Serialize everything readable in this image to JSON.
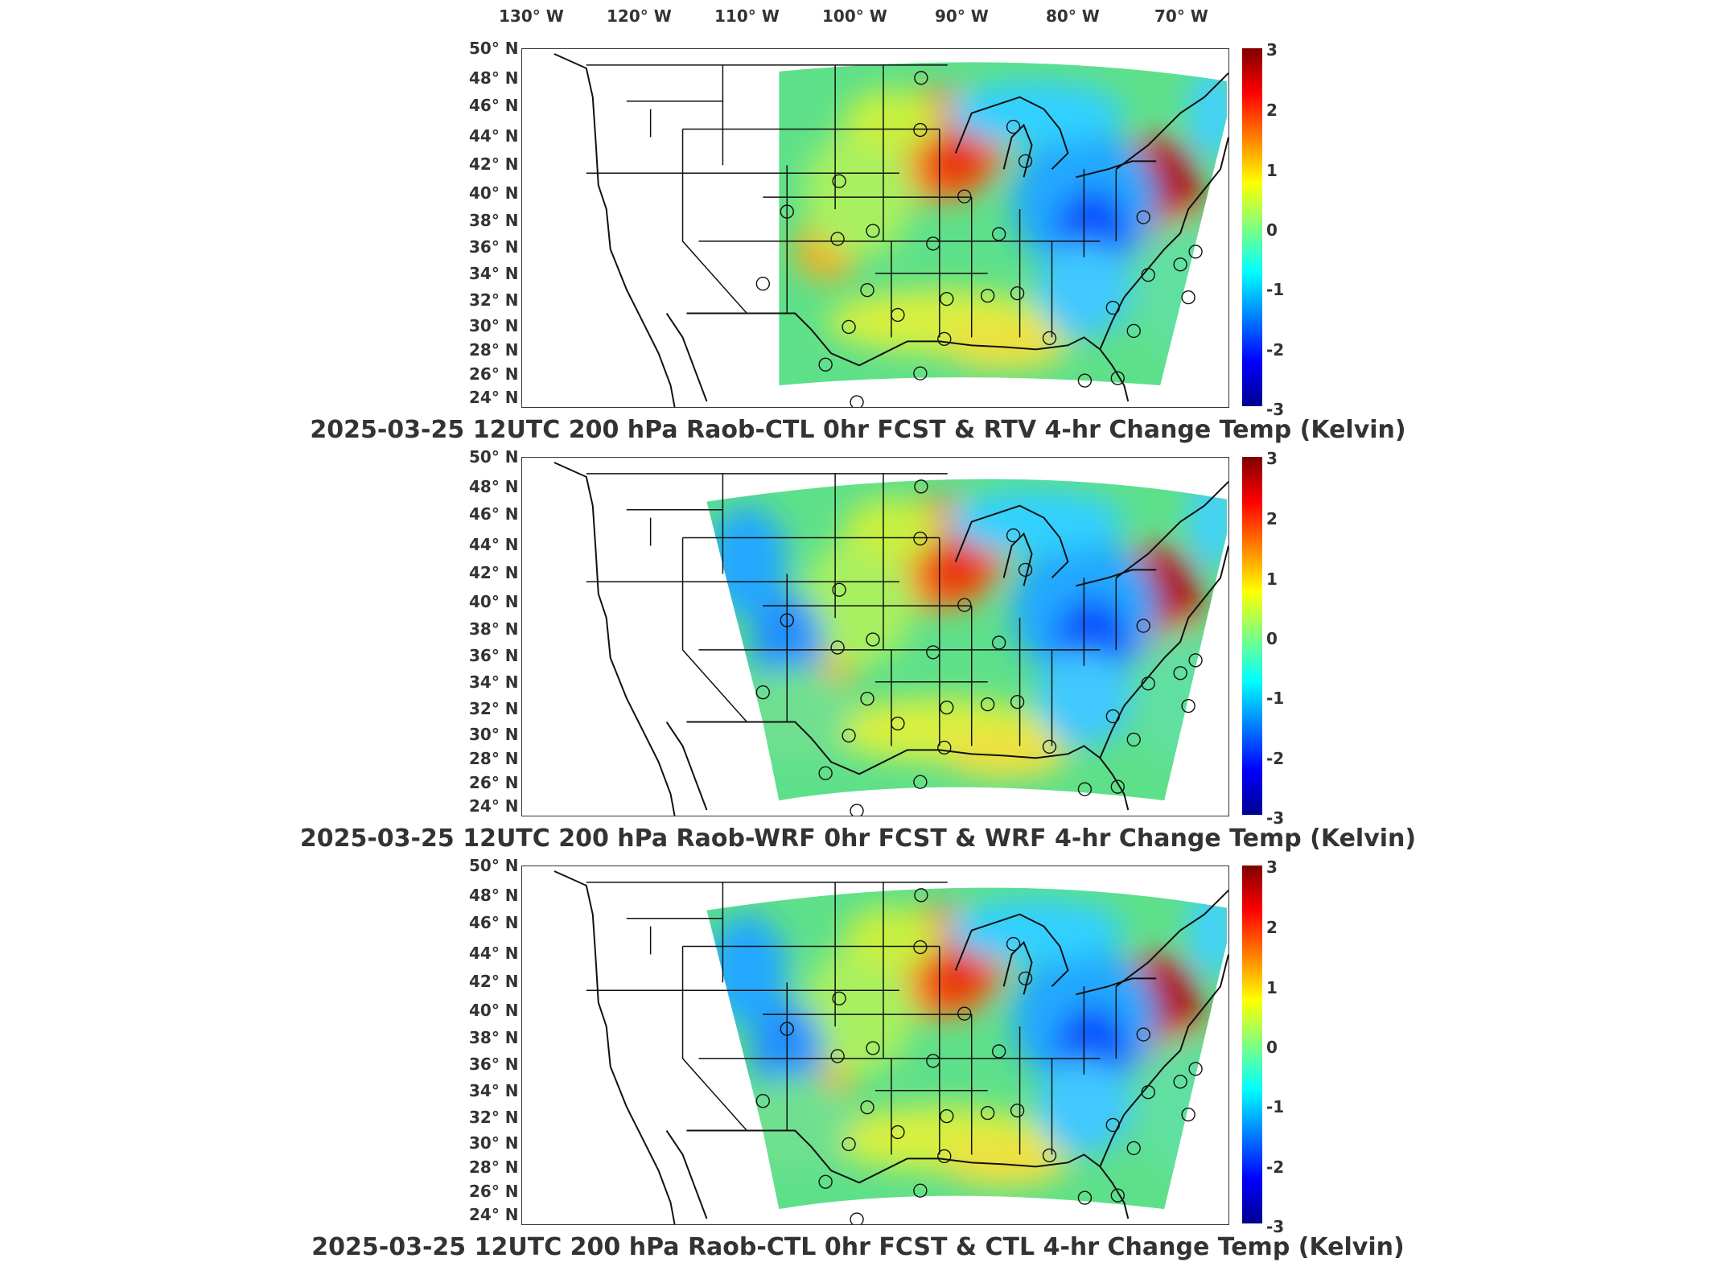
{
  "lon_labels": [
    "130° W",
    "120° W",
    "110° W",
    "100° W",
    "90° W",
    "80° W",
    "70° W"
  ],
  "lat_labels": [
    "50° N",
    "48° N",
    "46° N",
    "44° N",
    "42° N",
    "40° N",
    "38° N",
    "36° N",
    "34° N",
    "32° N",
    "30° N",
    "28° N",
    "26° N",
    "24° N"
  ],
  "colorbar": {
    "ticks": [
      "3",
      "2",
      "1",
      "0",
      "-1",
      "-2",
      "-3"
    ],
    "colors": [
      "#7f0000",
      "#ff0000",
      "#ff8000",
      "#ffff00",
      "#80ff80",
      "#00ffff",
      "#0080ff",
      "#0000ff",
      "#00008f"
    ]
  },
  "panels": [
    {
      "title": "2025-03-25 12UTC 200 hPa Raob-CTL 0hr FCST & RTV 4-hr Change Temp (Kelvin)",
      "domain": "rtv"
    },
    {
      "title": "2025-03-25 12UTC 200 hPa Raob-WRF 0hr FCST & WRF 4-hr Change Temp (Kelvin)",
      "domain": "wrf"
    },
    {
      "title": "2025-03-25 12UTC 200 hPa Raob-CTL 0hr FCST & CTL 4-hr Change Temp (Kelvin)",
      "domain": "wrf"
    }
  ]
}
